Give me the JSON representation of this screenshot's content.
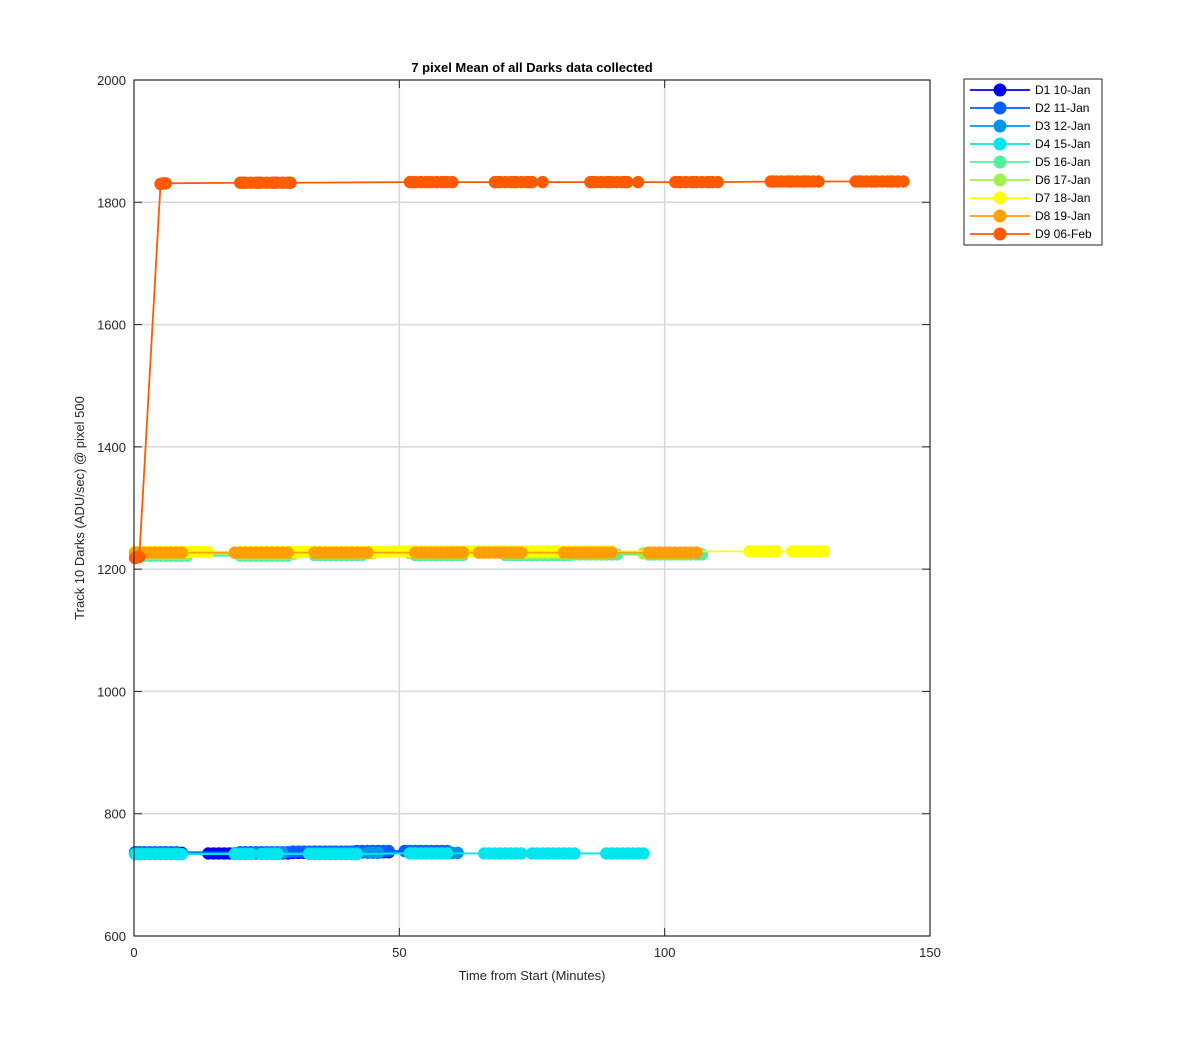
{
  "chart_data": {
    "type": "line",
    "title": "7 pixel Mean of all Darks data collected",
    "xlabel": "Time from Start (Minutes)",
    "ylabel": "Track 10 Darks (ADU/sec) @ pixel 500",
    "xlim": [
      0,
      150
    ],
    "ylim": [
      600,
      2000
    ],
    "xticks": [
      "0",
      "50",
      "100",
      "150"
    ],
    "yticks": [
      "600",
      "800",
      "1000",
      "1200",
      "1400",
      "1600",
      "1800",
      "2000"
    ],
    "grid": true,
    "legend_position": "outside-top-right",
    "series": [
      {
        "name": "D1 10-Jan",
        "color": "#0000ee",
        "x": [
          0.2,
          1,
          2,
          3,
          4,
          5,
          6,
          7,
          8,
          9,
          14,
          15,
          16,
          17,
          18,
          19,
          20,
          21,
          22,
          23,
          24,
          25,
          26,
          27,
          28,
          29,
          30,
          31,
          32,
          33,
          34,
          35,
          36,
          37,
          38,
          39,
          40,
          41,
          42,
          43,
          44,
          45,
          46,
          47,
          48
        ],
        "y": [
          736,
          736,
          736,
          736,
          736,
          736,
          736,
          736,
          736,
          736,
          735,
          735,
          735,
          735,
          735,
          735,
          735,
          735,
          735,
          735,
          735,
          735,
          735,
          735,
          735,
          735,
          736,
          736,
          736,
          736,
          736,
          736,
          736,
          736,
          736,
          737,
          737,
          737,
          737,
          737,
          737,
          737,
          737,
          737,
          737
        ]
      },
      {
        "name": "D2 11-Jan",
        "color": "#0060ff",
        "x": [
          0.2,
          1,
          2,
          3,
          4,
          5,
          6,
          7,
          8,
          20,
          21,
          22,
          23,
          24,
          25,
          26,
          27,
          28,
          29,
          30,
          31,
          32,
          33,
          34,
          35,
          36,
          37,
          38,
          39,
          40,
          41,
          42,
          43,
          44,
          45,
          46,
          47,
          48,
          51,
          52,
          53,
          54,
          55,
          56,
          57,
          58,
          59
        ],
        "y": [
          737,
          737,
          737,
          737,
          737,
          737,
          737,
          737,
          737,
          737,
          737,
          737,
          737,
          737,
          737,
          737,
          737,
          737,
          737,
          738,
          738,
          738,
          738,
          738,
          738,
          738,
          738,
          738,
          738,
          738,
          738,
          739,
          739,
          739,
          739,
          739,
          739,
          739,
          739,
          739,
          739,
          739,
          739,
          739,
          739,
          739,
          739
        ]
      },
      {
        "name": "D3 12-Jan",
        "color": "#0096e6",
        "x": [
          0.2,
          1,
          2,
          3,
          4,
          5,
          6,
          7,
          8,
          19,
          20,
          21,
          22,
          23,
          25,
          26,
          27,
          28,
          33,
          34,
          35,
          36,
          37,
          38,
          39,
          40,
          41,
          42,
          44,
          45,
          46,
          52,
          53,
          54,
          55,
          56,
          57,
          58,
          59,
          60,
          61
        ],
        "y": [
          735,
          735,
          735,
          735,
          735,
          735,
          735,
          735,
          735,
          735,
          735,
          735,
          735,
          735,
          736,
          736,
          736,
          736,
          736,
          736,
          736,
          736,
          736,
          736,
          736,
          736,
          736,
          736,
          736,
          736,
          736,
          736,
          736,
          736,
          736,
          736,
          736,
          736,
          736,
          736,
          736
        ]
      },
      {
        "name": "D4 15-Jan",
        "color": "#00e6ee",
        "x": [
          0.2,
          1,
          2,
          3,
          4,
          5,
          6,
          7,
          8,
          9,
          19,
          20,
          21,
          22,
          24,
          25,
          26,
          27,
          33,
          34,
          35,
          36,
          37,
          38,
          39,
          40,
          41,
          42,
          52,
          53,
          54,
          55,
          56,
          57,
          58,
          59,
          66,
          67,
          68,
          69,
          70,
          71,
          72,
          73,
          75,
          76,
          77,
          78,
          79,
          80,
          81,
          82,
          83,
          89,
          90,
          91,
          92,
          93,
          94,
          95,
          96
        ],
        "y": [
          734,
          734,
          734,
          734,
          734,
          734,
          734,
          734,
          734,
          734,
          734,
          734,
          734,
          734,
          734,
          734,
          734,
          734,
          734,
          734,
          734,
          734,
          734,
          734,
          734,
          734,
          734,
          734,
          735,
          735,
          735,
          735,
          735,
          735,
          735,
          735,
          735,
          735,
          735,
          735,
          735,
          735,
          735,
          735,
          735,
          735,
          735,
          735,
          735,
          735,
          735,
          735,
          735,
          735,
          735,
          735,
          735,
          735,
          735,
          735,
          735
        ]
      },
      {
        "name": "D5 16-Jan",
        "color": "#50f0a0",
        "x": [
          0.2,
          1,
          2,
          3,
          4,
          5,
          6,
          7,
          8,
          9,
          10,
          20,
          21,
          22,
          23,
          24,
          25,
          26,
          27,
          28,
          29,
          34,
          35,
          36,
          37,
          38,
          39,
          40,
          41,
          42,
          43,
          53,
          54,
          55,
          56,
          57,
          58,
          59,
          60,
          61,
          62,
          70,
          71,
          72,
          73,
          74,
          75,
          76,
          77,
          78,
          79,
          80,
          81,
          82,
          83,
          84,
          85,
          86,
          87,
          88,
          89,
          90,
          91,
          97,
          98,
          99,
          100,
          101,
          102,
          103,
          104,
          105,
          106,
          107
        ],
        "y": [
          1222,
          1222,
          1222,
          1222,
          1222,
          1222,
          1222,
          1222,
          1222,
          1222,
          1222,
          1222,
          1222,
          1222,
          1222,
          1222,
          1222,
          1222,
          1222,
          1222,
          1222,
          1223,
          1223,
          1223,
          1223,
          1223,
          1223,
          1223,
          1223,
          1223,
          1223,
          1223,
          1223,
          1223,
          1223,
          1223,
          1223,
          1223,
          1223,
          1223,
          1223,
          1223,
          1223,
          1223,
          1223,
          1223,
          1223,
          1223,
          1223,
          1223,
          1223,
          1223,
          1223,
          1223,
          1224,
          1224,
          1224,
          1224,
          1224,
          1224,
          1224,
          1224,
          1224,
          1224,
          1224,
          1224,
          1224,
          1224,
          1224,
          1224,
          1224,
          1224,
          1224,
          1224
        ]
      },
      {
        "name": "D6 17-Jan",
        "color": "#a0f050",
        "x": [
          0.2,
          1,
          2,
          3,
          4,
          5,
          6,
          7,
          8,
          9,
          10,
          20,
          21,
          22,
          23,
          24,
          25,
          26,
          27,
          28,
          29,
          30,
          35,
          36,
          37,
          38,
          39,
          40,
          41,
          42,
          43,
          44,
          45,
          52,
          53,
          54,
          55,
          56,
          57,
          58,
          59,
          60,
          61,
          62,
          70,
          71,
          72,
          73,
          74,
          75,
          76,
          77,
          78,
          79,
          80,
          81,
          82,
          83,
          84,
          85,
          86,
          87,
          88,
          89,
          90,
          96,
          97,
          98,
          99,
          100,
          101,
          102,
          103,
          104,
          105
        ],
        "y": [
          1225,
          1225,
          1225,
          1225,
          1225,
          1225,
          1225,
          1225,
          1225,
          1225,
          1225,
          1225,
          1225,
          1225,
          1225,
          1225,
          1225,
          1225,
          1225,
          1225,
          1225,
          1225,
          1226,
          1226,
          1226,
          1226,
          1226,
          1226,
          1226,
          1226,
          1226,
          1226,
          1226,
          1226,
          1226,
          1226,
          1226,
          1226,
          1226,
          1226,
          1226,
          1226,
          1226,
          1226,
          1226,
          1226,
          1226,
          1226,
          1226,
          1226,
          1226,
          1226,
          1226,
          1226,
          1226,
          1226,
          1226,
          1226,
          1226,
          1226,
          1226,
          1226,
          1226,
          1226,
          1226,
          1226,
          1226,
          1226,
          1226,
          1226,
          1226,
          1226,
          1226,
          1226,
          1226
        ]
      },
      {
        "name": "D7 18-Jan",
        "color": "#ffff00",
        "x": [
          0.2,
          1,
          2,
          3,
          4,
          5,
          6,
          7,
          8,
          9,
          10,
          11,
          12,
          13,
          14,
          20,
          21,
          22,
          23,
          24,
          25,
          26,
          27,
          28,
          29,
          30,
          31,
          32,
          33,
          34,
          35,
          36,
          37,
          38,
          39,
          40,
          41,
          42,
          43,
          44,
          45,
          46,
          47,
          48,
          49,
          50,
          51,
          52,
          53,
          54,
          55,
          56,
          57,
          58,
          59,
          60,
          61,
          62,
          63,
          64,
          65,
          66,
          67,
          68,
          69,
          70,
          71,
          72,
          73,
          74,
          75,
          76,
          77,
          78,
          79,
          80,
          81,
          82,
          83,
          84,
          85,
          86,
          87,
          88,
          89,
          90,
          116,
          117,
          118,
          119,
          120,
          121,
          124,
          125,
          126,
          127,
          128,
          129,
          130
        ],
        "y": [
          1228,
          1228,
          1228,
          1228,
          1228,
          1228,
          1228,
          1228,
          1228,
          1228,
          1228,
          1228,
          1228,
          1228,
          1228,
          1228,
          1228,
          1228,
          1228,
          1228,
          1228,
          1228,
          1228,
          1228,
          1228,
          1228,
          1228,
          1228,
          1228,
          1228,
          1228,
          1228,
          1228,
          1228,
          1228,
          1228,
          1228,
          1228,
          1228,
          1228,
          1228,
          1228,
          1228,
          1228,
          1229,
          1229,
          1229,
          1229,
          1229,
          1229,
          1229,
          1229,
          1229,
          1229,
          1229,
          1229,
          1229,
          1229,
          1229,
          1229,
          1229,
          1229,
          1229,
          1229,
          1229,
          1229,
          1229,
          1229,
          1229,
          1229,
          1229,
          1229,
          1229,
          1229,
          1229,
          1229,
          1229,
          1229,
          1229,
          1229,
          1229,
          1229,
          1229,
          1229,
          1229,
          1229,
          1229,
          1229,
          1229,
          1229,
          1229,
          1229,
          1229,
          1229,
          1229,
          1229,
          1229,
          1229,
          1229
        ]
      },
      {
        "name": "D8 19-Jan",
        "color": "#ffa000",
        "x": [
          0.2,
          1,
          2,
          3,
          4,
          5,
          6,
          7,
          8,
          9,
          19,
          20,
          21,
          22,
          23,
          24,
          25,
          26,
          27,
          28,
          29,
          34,
          35,
          36,
          37,
          38,
          39,
          40,
          41,
          42,
          43,
          44,
          53,
          54,
          55,
          56,
          57,
          58,
          59,
          60,
          61,
          62,
          65,
          66,
          67,
          68,
          69,
          70,
          71,
          72,
          73,
          81,
          82,
          83,
          84,
          85,
          86,
          87,
          88,
          89,
          90,
          97,
          98,
          99,
          100,
          101,
          102,
          103,
          104,
          105,
          106
        ],
        "y": [
          1227,
          1227,
          1227,
          1227,
          1227,
          1227,
          1227,
          1227,
          1227,
          1227,
          1227,
          1227,
          1227,
          1227,
          1227,
          1227,
          1227,
          1227,
          1227,
          1227,
          1227,
          1227,
          1227,
          1227,
          1227,
          1227,
          1227,
          1227,
          1227,
          1227,
          1227,
          1227,
          1227,
          1227,
          1227,
          1227,
          1227,
          1227,
          1227,
          1227,
          1227,
          1227,
          1227,
          1227,
          1227,
          1227,
          1227,
          1227,
          1227,
          1227,
          1227,
          1227,
          1227,
          1227,
          1227,
          1227,
          1227,
          1227,
          1227,
          1227,
          1227,
          1227,
          1227,
          1227,
          1227,
          1227,
          1227,
          1227,
          1227,
          1227,
          1227
        ]
      },
      {
        "name": "D9 06-Feb",
        "color": "#ff5a00",
        "x": [
          0.2,
          0.5,
          1,
          5,
          5.5,
          6,
          20,
          20.5,
          21,
          22,
          23,
          23.5,
          24,
          25,
          26,
          26.5,
          27,
          28,
          29,
          29.5,
          52,
          52.5,
          53,
          54,
          55,
          55.5,
          56,
          57,
          58,
          58.5,
          59,
          60,
          68,
          68.5,
          69,
          70,
          71,
          71.5,
          72,
          73,
          74,
          74.5,
          75,
          77,
          86,
          86.5,
          87,
          88,
          89,
          89.5,
          90,
          91,
          92,
          92.5,
          93,
          95,
          102,
          102.5,
          103,
          104,
          105,
          105.5,
          106,
          107,
          108,
          108.5,
          109,
          110,
          120,
          120.5,
          121,
          122,
          123,
          123.5,
          124,
          125,
          126,
          126.5,
          127,
          128,
          129,
          136,
          136.5,
          137,
          138,
          139,
          139.5,
          140,
          141,
          142,
          142.5,
          143,
          144,
          145
        ],
        "y": [
          1218,
          1219,
          1220,
          1830,
          1831,
          1831,
          1832,
          1832,
          1832,
          1832,
          1832,
          1832,
          1832,
          1832,
          1832,
          1832,
          1832,
          1832,
          1832,
          1832,
          1833,
          1833,
          1833,
          1833,
          1833,
          1833,
          1833,
          1833,
          1833,
          1833,
          1833,
          1833,
          1833,
          1833,
          1833,
          1833,
          1833,
          1833,
          1833,
          1833,
          1833,
          1833,
          1833,
          1833,
          1833,
          1833,
          1833,
          1833,
          1833,
          1833,
          1833,
          1833,
          1833,
          1833,
          1833,
          1833,
          1833,
          1833,
          1833,
          1833,
          1833,
          1833,
          1833,
          1833,
          1833,
          1833,
          1833,
          1833,
          1834,
          1834,
          1834,
          1834,
          1834,
          1834,
          1834,
          1834,
          1834,
          1834,
          1834,
          1834,
          1834,
          1834,
          1834,
          1834,
          1834,
          1834,
          1834,
          1834,
          1834,
          1834,
          1834,
          1834,
          1834,
          1834
        ]
      }
    ]
  }
}
